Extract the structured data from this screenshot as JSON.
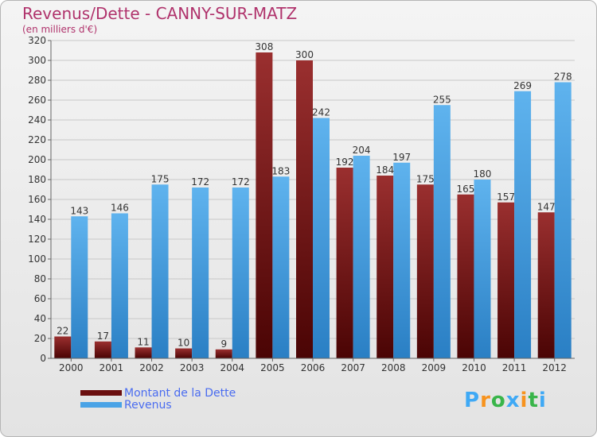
{
  "header": {
    "title": "Revenus/Dette - CANNY-SUR-MATZ",
    "subtitle": "(en milliers d'€)"
  },
  "chart_data": {
    "type": "bar",
    "title": "Revenus/Dette - CANNY-SUR-MATZ",
    "ylabel": "(en milliers d'€)",
    "xlabel": "",
    "categories": [
      "2000",
      "2001",
      "2002",
      "2003",
      "2004",
      "2005",
      "2006",
      "2007",
      "2008",
      "2009",
      "2010",
      "2011",
      "2012"
    ],
    "series": [
      {
        "name": "Montant de la Dette",
        "color": "#8b2323",
        "values": [
          22,
          17,
          11,
          10,
          9,
          308,
          300,
          192,
          184,
          175,
          165,
          157,
          147
        ]
      },
      {
        "name": "Revenus",
        "color": "#4aa3e6",
        "values": [
          143,
          146,
          175,
          172,
          172,
          183,
          242,
          204,
          197,
          255,
          180,
          269,
          278
        ]
      }
    ],
    "ylim": [
      0,
      320
    ],
    "yticks": [
      0,
      20,
      40,
      60,
      80,
      100,
      120,
      140,
      160,
      180,
      200,
      220,
      240,
      260,
      280,
      300,
      320
    ],
    "grid": true,
    "legend": "bottom-left"
  },
  "legend": {
    "items": [
      {
        "label": "Montant de la Dette",
        "color": "#6b0f0f"
      },
      {
        "label": "Revenus",
        "color": "#4aa3e6"
      }
    ]
  },
  "logo": {
    "letters": [
      "P",
      "r",
      "o",
      "x",
      "i",
      "t",
      "i"
    ],
    "colors": [
      "#3fa9f5",
      "#f7931e",
      "#39b54a",
      "#3fa9f5",
      "#f7931e",
      "#39b54a",
      "#3fa9f5"
    ]
  }
}
